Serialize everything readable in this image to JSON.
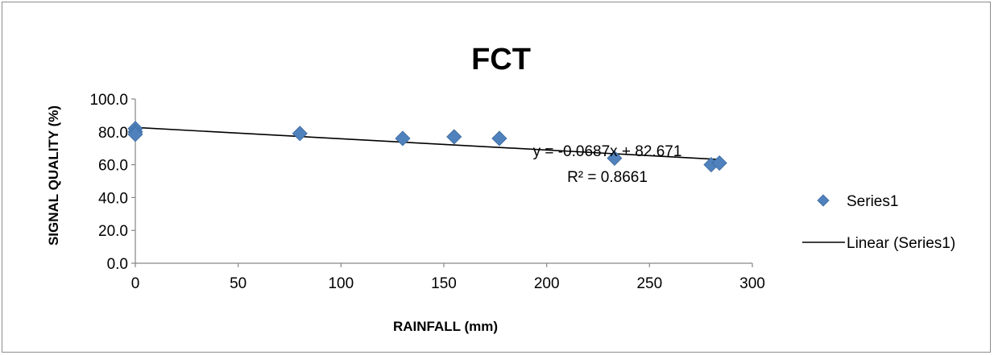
{
  "chart_data": {
    "type": "scatter",
    "title": "FCT",
    "xlabel": "RAINFALL (mm)",
    "ylabel": "SIGNAL QUALITY (%)",
    "xlim": [
      0,
      300
    ],
    "ylim": [
      0,
      100
    ],
    "x_ticks": [
      "0",
      "50",
      "100",
      "150",
      "200",
      "250",
      "300"
    ],
    "y_ticks": [
      "0.0",
      "20.0",
      "40.0",
      "60.0",
      "80.0",
      "100.0"
    ],
    "grid": false,
    "legend_position": "right",
    "series": [
      {
        "name": "Series1",
        "color": "#4f81bd",
        "marker": "diamond",
        "points": [
          {
            "x": 0,
            "y": 82
          },
          {
            "x": 0,
            "y": 80
          },
          {
            "x": 0,
            "y": 78.5
          },
          {
            "x": 80,
            "y": 79
          },
          {
            "x": 130,
            "y": 76
          },
          {
            "x": 155,
            "y": 77
          },
          {
            "x": 177,
            "y": 76
          },
          {
            "x": 233,
            "y": 64
          },
          {
            "x": 280,
            "y": 60
          },
          {
            "x": 284,
            "y": 61
          }
        ]
      }
    ],
    "trendline": {
      "name": "Linear (Series1)",
      "type": "linear",
      "slope": -0.0687,
      "intercept": 82.671,
      "x_range": [
        0,
        284
      ],
      "color": "#000000",
      "equation": "y = -0.0687x + 82.671",
      "r_squared": "R² = 0.8661"
    }
  }
}
